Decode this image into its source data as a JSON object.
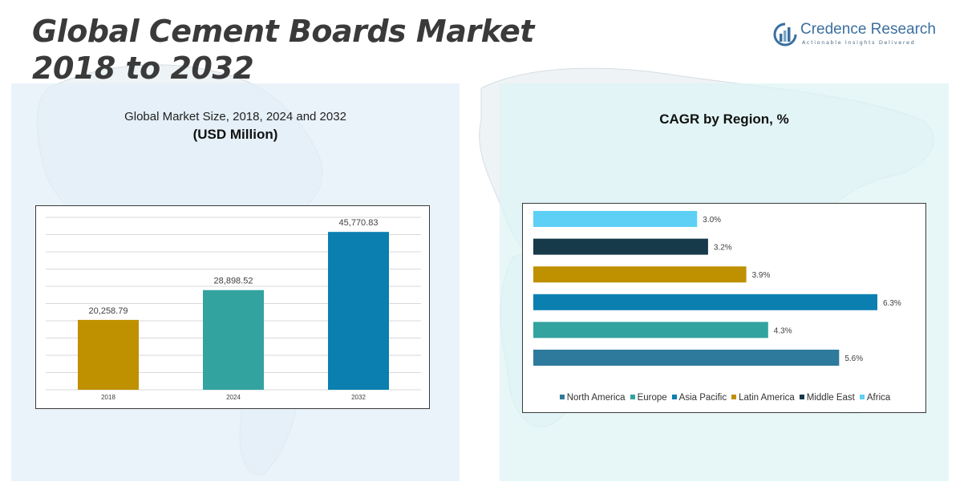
{
  "header": {
    "title_line1": "Global Cement Boards Market",
    "title_line2": "2018 to 2032"
  },
  "logo": {
    "name": "Credence Research",
    "tagline": "Actionable Insights Delivered"
  },
  "colors": {
    "bar_2018": "#bf9000",
    "bar_2024": "#33a39f",
    "bar_2032": "#0a7fb0",
    "north_america": "#2e7a9c",
    "europe": "#33a39f",
    "asia_pacific": "#0a7fb0",
    "latin_america": "#bf9000",
    "middle_east": "#163a4a",
    "africa": "#5fd0f5"
  },
  "chart_data": [
    {
      "type": "bar",
      "title": "Global Market Size, 2018, 2024 and 2032",
      "subtitle": "(USD Million)",
      "categories": [
        "2018",
        "2024",
        "2032"
      ],
      "values": [
        20258.79,
        28898.52,
        45770.83
      ],
      "value_labels": [
        "20,258.79",
        "28,898.52",
        "45,770.83"
      ],
      "ylim": [
        0,
        50000
      ],
      "grid": true,
      "xlabel": "",
      "ylabel": ""
    },
    {
      "type": "bar",
      "orientation": "horizontal",
      "title": "CAGR by Region, %",
      "series": [
        {
          "name": "North America",
          "value": 5.6,
          "label": "5.6%"
        },
        {
          "name": "Europe",
          "value": 4.3,
          "label": "4.3%"
        },
        {
          "name": "Asia Pacific",
          "value": 6.3,
          "label": "6.3%"
        },
        {
          "name": "Latin America",
          "value": 3.9,
          "label": "3.9%"
        },
        {
          "name": "Middle East",
          "value": 3.2,
          "label": "3.2%"
        },
        {
          "name": "Africa",
          "value": 3.0,
          "label": "3.0%"
        }
      ],
      "xlim": [
        0,
        6.3
      ],
      "legend": "bottom"
    }
  ]
}
